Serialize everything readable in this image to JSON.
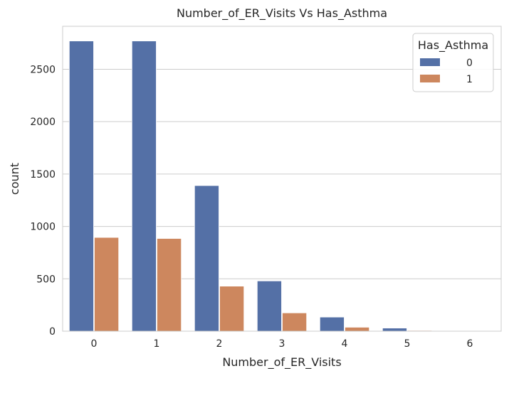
{
  "chart_data": {
    "type": "bar",
    "title": "Number_of_ER_Visits Vs Has_Asthma",
    "xlabel": "Number_of_ER_Visits",
    "ylabel": "count",
    "categories": [
      "0",
      "1",
      "2",
      "3",
      "4",
      "5",
      "6"
    ],
    "series": [
      {
        "name": "0",
        "values": [
          2770,
          2770,
          1390,
          480,
          135,
          30,
          3
        ],
        "color": "#5470a6"
      },
      {
        "name": "1",
        "values": [
          895,
          885,
          430,
          175,
          38,
          7,
          2
        ],
        "color": "#cd875e"
      }
    ],
    "yticks": [
      0,
      500,
      1000,
      1500,
      2000,
      2500
    ],
    "ylim": [
      0,
      2910
    ],
    "grid": "horizontal",
    "legend": {
      "title": "Has_Asthma",
      "placement": "top-right"
    }
  }
}
